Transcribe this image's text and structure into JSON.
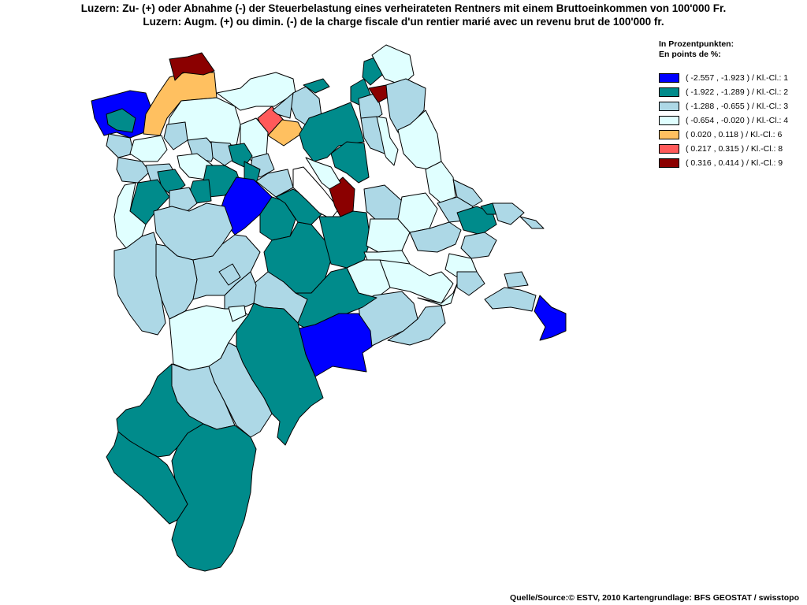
{
  "title": {
    "line1": "Luzern: Zu- (+) oder Abnahme (-) der Steuerbelastung eines verheirateten Rentners mit einem Bruttoeinkommen von 100'000 Fr.",
    "line2": "Luzern: Augm. (+) ou dimin. (-) de la charge fiscale d'un rentier marié avec un revenu brut de 100'000 fr."
  },
  "legend": {
    "heading_de": "In Prozentpunkten:",
    "heading_fr": "En points de %:",
    "classes": [
      {
        "label": "( -2.557 , -1.923 ) / Kl.-Cl.: 1",
        "color": "#0000ff",
        "min": -2.557,
        "max": -1.923,
        "class": 1
      },
      {
        "label": "( -1.922 , -1.289 ) / Kl.-Cl.: 2",
        "color": "#008b8b",
        "min": -1.922,
        "max": -1.289,
        "class": 2
      },
      {
        "label": "( -1.288 , -0.655 ) / Kl.-Cl.: 3",
        "color": "#add8e6",
        "min": -1.288,
        "max": -0.655,
        "class": 3
      },
      {
        "label": "( -0.654 , -0.020 ) / Kl.-Cl.: 4",
        "color": "#e0ffff",
        "min": -0.654,
        "max": -0.02,
        "class": 4
      },
      {
        "label": "( 0.020 , 0.118 ) / Kl.-Cl.: 6",
        "color": "#ffc060",
        "min": 0.02,
        "max": 0.118,
        "class": 6
      },
      {
        "label": "( 0.217 , 0.315 ) / Kl.-Cl.: 8",
        "color": "#ff5a5a",
        "min": 0.217,
        "max": 0.315,
        "class": 8
      },
      {
        "label": "( 0.316 , 0.414 ) / Kl.-Cl.: 9",
        "color": "#8b0000",
        "min": 0.316,
        "max": 0.414,
        "class": 9
      }
    ]
  },
  "source": "Quelle/Source:© ESTV, 2010 Kartengrundlage: BFS GEOSTAT / swisstopo",
  "map_colors": {
    "c1": "#0000ff",
    "c2": "#008b8b",
    "c3": "#add8e6",
    "c4": "#e0ffff",
    "c6": "#ffc060",
    "c8": "#ff5a5a",
    "c9": "#8b0000",
    "nodata": "#ffffff"
  }
}
